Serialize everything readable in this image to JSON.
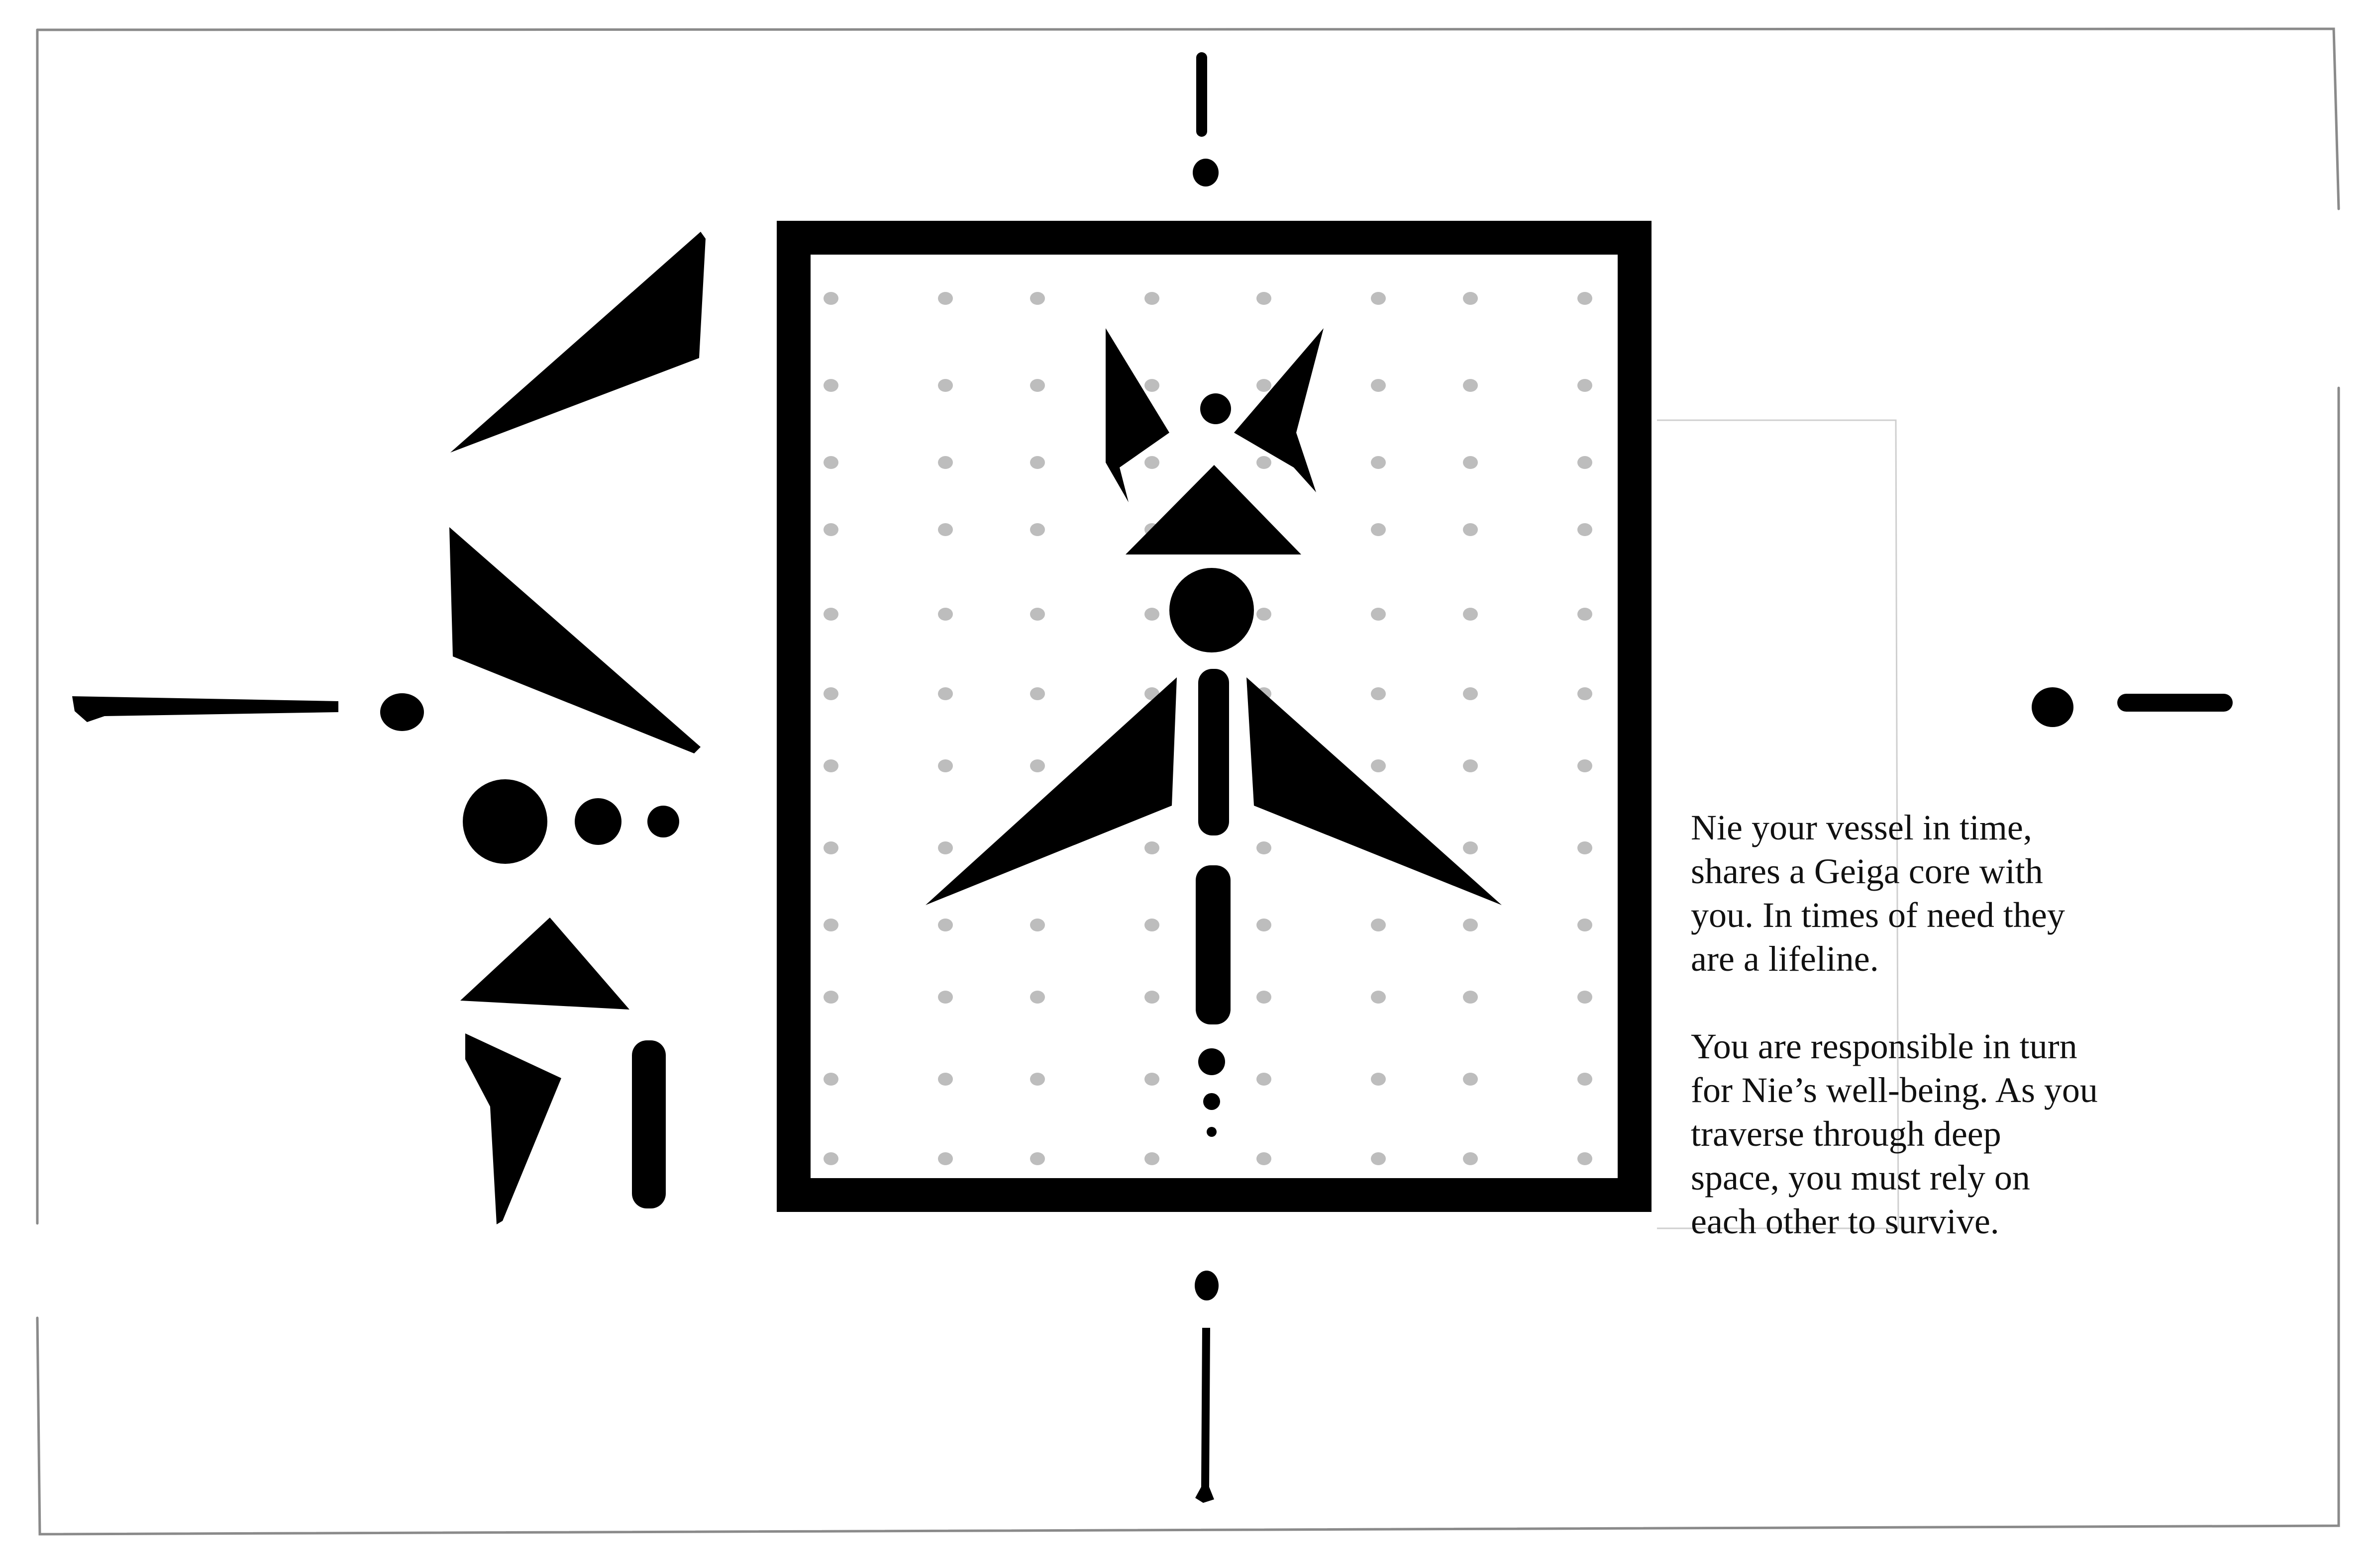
{
  "caption": {
    "paragraph_1": {
      "lines": [
        "Nie your vessel in time,",
        "shares a Geiga core with",
        "you. In times of need they",
        "are a lifeline."
      ]
    },
    "paragraph_2": {
      "lines": [
        "You are responsible in turn",
        "for Nie’s well-being. As you",
        "traverse through deep",
        "space, you must rely on",
        "each other to survive."
      ]
    }
  },
  "colors": {
    "ink": "#000000",
    "dot_grid": "#bdbdbd",
    "frame_line": "#9a9a9a",
    "background": "#ffffff",
    "text": "#111111"
  },
  "icons": {
    "emblem": "nie-vessel-glyph",
    "side_glyphs": "abstract-script-glyphs"
  }
}
